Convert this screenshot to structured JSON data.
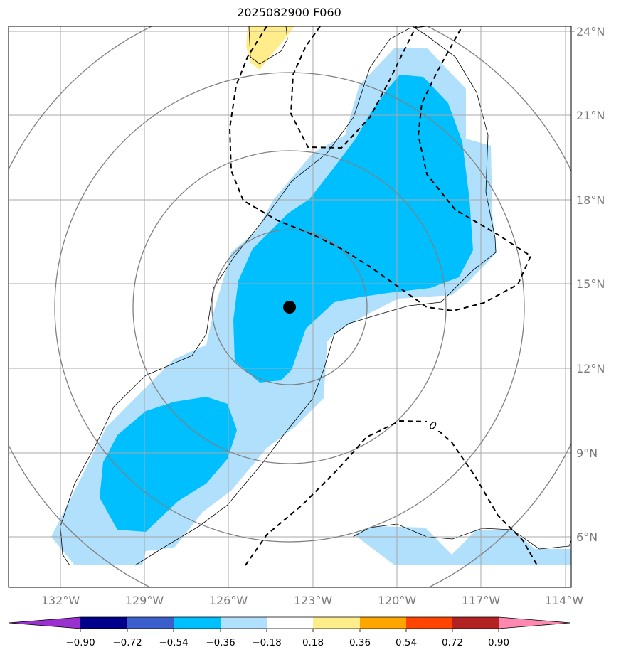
{
  "title": "2025082900 F060",
  "map": {
    "lon_range": [
      -134.5,
      -113.5
    ],
    "lat_range": [
      4.0,
      24.2
    ],
    "lat_ticks": [
      {
        "value": 24,
        "label": "24°N"
      },
      {
        "value": 21,
        "label": "21°N"
      },
      {
        "value": 18,
        "label": "18°N"
      },
      {
        "value": 15,
        "label": "15°N"
      },
      {
        "value": 12,
        "label": "12°N"
      },
      {
        "value": 9,
        "label": "9°N"
      },
      {
        "value": 6,
        "label": "6°N"
      }
    ],
    "lon_ticks": [
      {
        "value": -132,
        "label": "132°W"
      },
      {
        "value": -129,
        "label": "129°W"
      },
      {
        "value": -126,
        "label": "126°W"
      },
      {
        "value": -123,
        "label": "123°W"
      },
      {
        "value": -120,
        "label": "120°W"
      },
      {
        "value": -117,
        "label": "117°W"
      },
      {
        "value": -114,
        "label": "114°W"
      }
    ],
    "storm_center": {
      "lon": -123.8,
      "lat": 14.2
    },
    "contour_label": "0"
  },
  "colorbar": {
    "colors": [
      "#9b30d0",
      "#00008b",
      "#3a5fcd",
      "#00bfff",
      "#b0e0fb",
      "#ffffff",
      "#ffec8b",
      "#ffa500",
      "#ff4500",
      "#b22222",
      "#ff88b0"
    ],
    "labels": [
      "−0.90",
      "−0.72",
      "−0.54",
      "−0.36",
      "−0.18",
      "0.18",
      "0.36",
      "0.54",
      "0.72",
      "0.90"
    ]
  }
}
